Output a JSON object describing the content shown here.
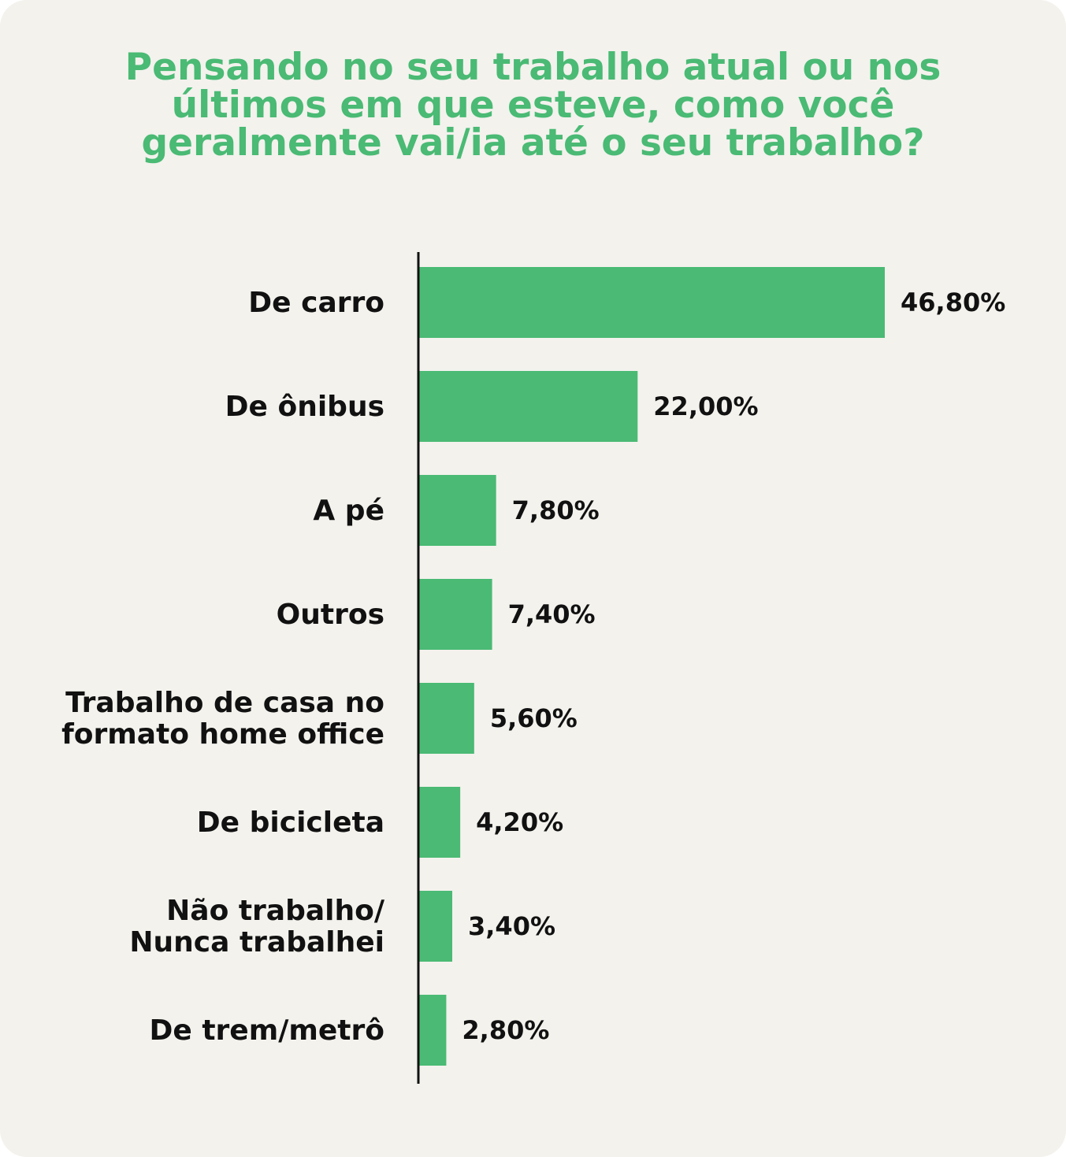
{
  "title": "Pensando no seu trabalho atual ou nos\núltimos em que esteve, como você\ngeralmente vai/ia até o seu trabalho?",
  "colors": {
    "bar": "#4aba74",
    "title": "#4aba74",
    "text": "#111111",
    "axis": "#111111",
    "background": "#f3f2ed"
  },
  "chart_data": {
    "type": "bar",
    "orientation": "horizontal",
    "title": "Pensando no seu trabalho atual ou nos últimos em que esteve, como você geralmente vai/ia até o seu trabalho?",
    "categories": [
      [
        "De carro"
      ],
      [
        "De ônibus"
      ],
      [
        "A pé"
      ],
      [
        "Outros"
      ],
      [
        "Trabalho de casa no",
        "formato home office"
      ],
      [
        "De bicicleta"
      ],
      [
        "Não trabalho/",
        "Nunca trabalhei"
      ],
      [
        "De trem/metrô"
      ]
    ],
    "values": [
      46.8,
      22.0,
      7.8,
      7.4,
      5.6,
      4.2,
      3.4,
      2.8
    ],
    "value_labels": [
      "46,80%",
      "22,00%",
      "7,80%",
      "7,40%",
      "5,60%",
      "4,20%",
      "3,40%",
      "2,80%"
    ],
    "unit": "%",
    "grid": false,
    "legend": "none"
  }
}
